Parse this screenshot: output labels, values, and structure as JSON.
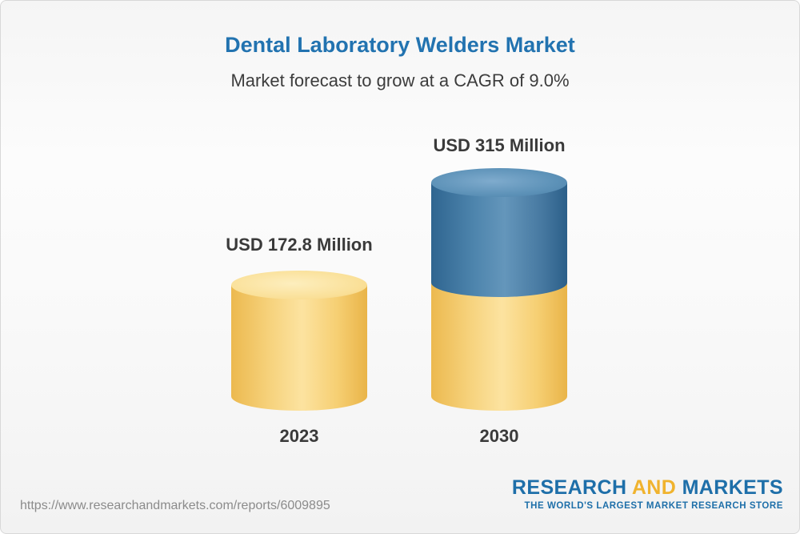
{
  "page": {
    "title": "Dental Laboratory Welders Market",
    "subtitle": "Market forecast to grow at a CAGR of 9.0%"
  },
  "chart_data": {
    "type": "bar",
    "subtype": "3d-cylinder",
    "categories": [
      "2023",
      "2030"
    ],
    "values": [
      172.8,
      315
    ],
    "unit": "USD Million",
    "value_labels": [
      "USD 172.8 Million",
      "USD 315 Million"
    ],
    "series": [
      {
        "name": "2023",
        "value": 172.8,
        "segment_colors": [
          "#f5c963"
        ]
      },
      {
        "name": "2030",
        "value": 315,
        "segment_colors": [
          "#f5c963",
          "#4379a5"
        ]
      }
    ],
    "title": "Dental Laboratory Welders Market",
    "subtitle": "Market forecast to grow at a CAGR of 9.0%",
    "cagr_percent": 9.0,
    "xlabel": "",
    "ylabel": "",
    "legend": "none",
    "grid": false
  },
  "colors": {
    "title_blue": "#2273b0",
    "bar_yellow": "#f5c963",
    "bar_blue": "#4379a5",
    "label_text": "#3a3a3a",
    "url_gray": "#8b8b8b",
    "logo_blue": "#1e6fa9",
    "logo_gold": "#f0b32e"
  },
  "footer": {
    "url": "https://www.researchandmarkets.com/reports/6009895",
    "logo": {
      "research": "RESEARCH",
      "and": "AND",
      "markets": "MARKETS",
      "tagline": "THE WORLD'S LARGEST MARKET RESEARCH STORE"
    }
  }
}
